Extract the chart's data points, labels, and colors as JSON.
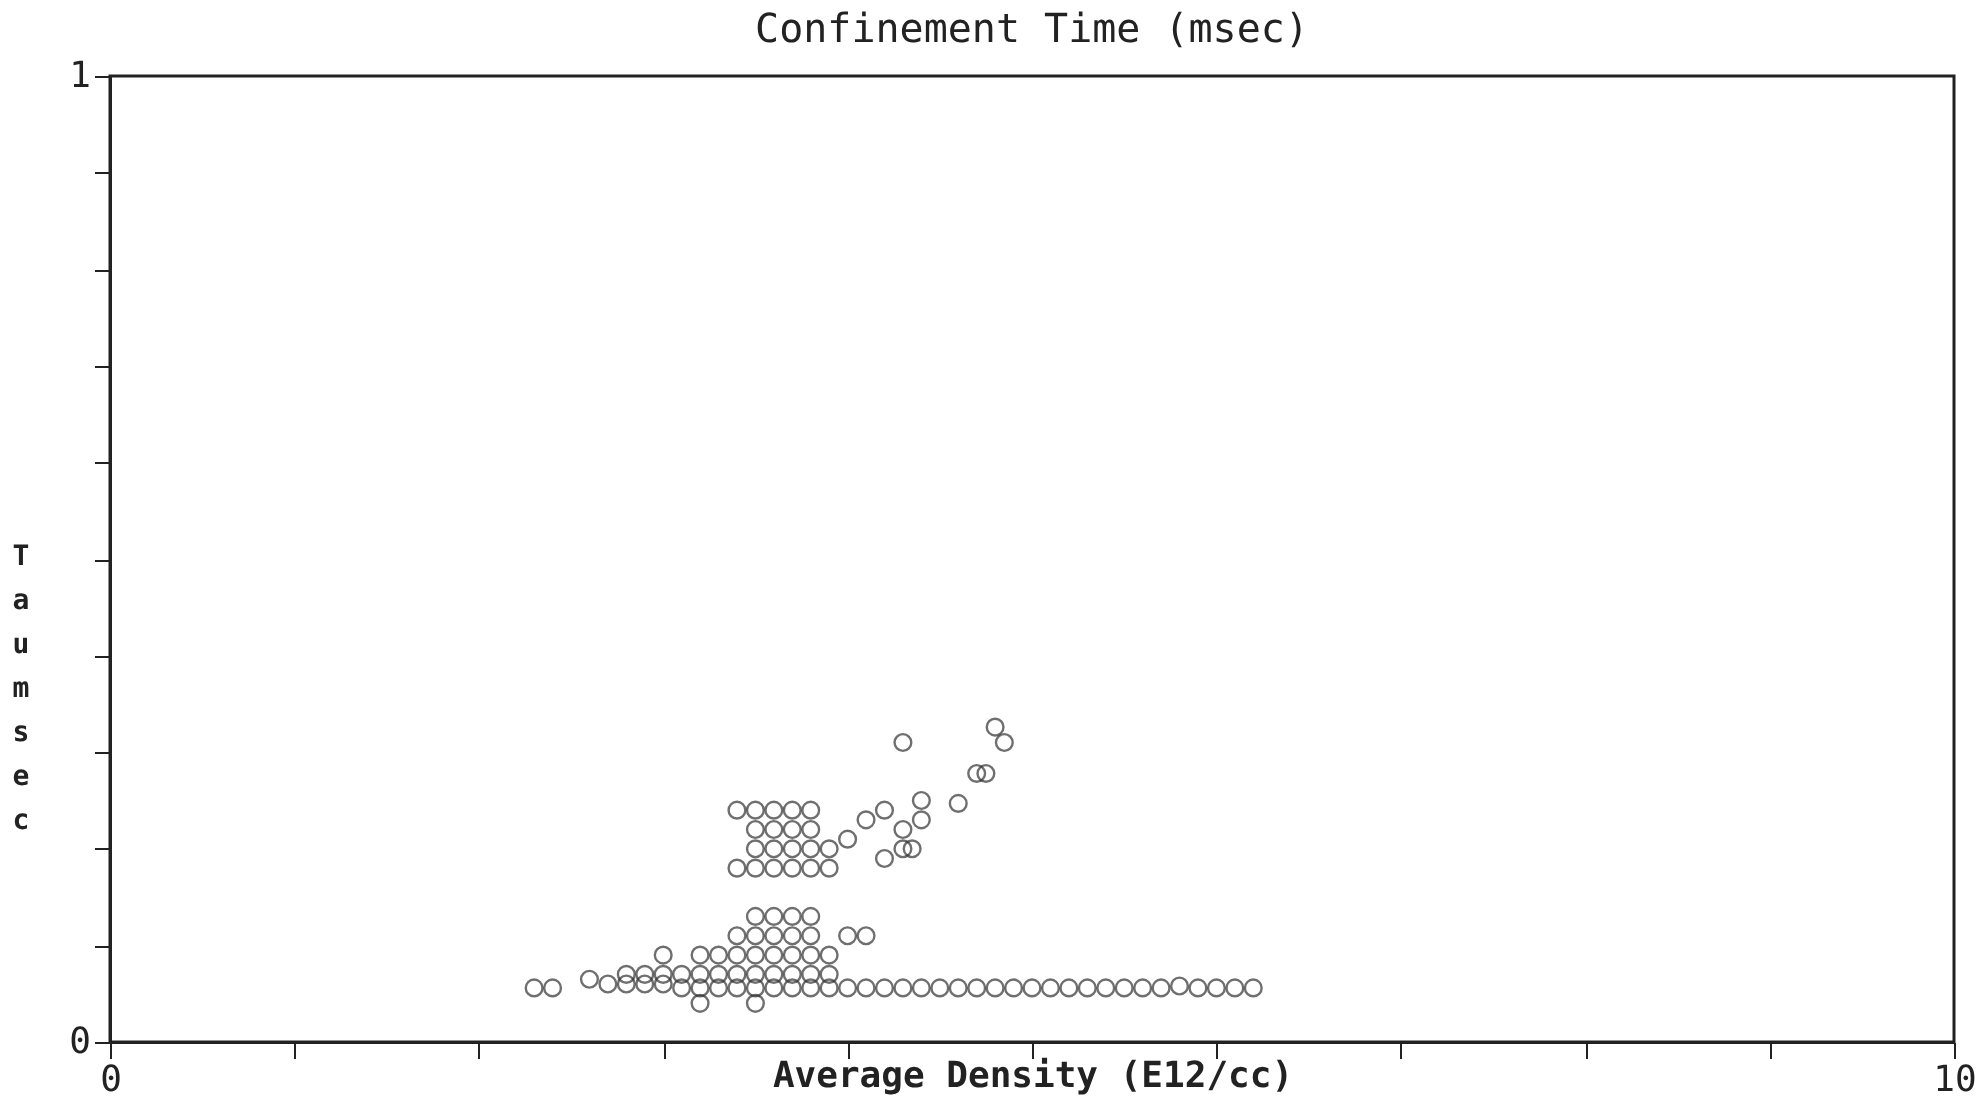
{
  "chart_data": {
    "type": "scatter",
    "title": "Confinement Time (msec)",
    "xlabel": "Average Density (E12/cc)",
    "ylabel": "Tau msec",
    "xlim": [
      0,
      10
    ],
    "ylim": [
      0,
      1
    ],
    "xticks": [
      0,
      {
        "value": 1,
        "label": null
      },
      {
        "value": 2,
        "label": null
      },
      {
        "value": 3,
        "label": null
      },
      {
        "value": 4,
        "label": null
      },
      {
        "value": 5,
        "label": null
      },
      {
        "value": 6,
        "label": null
      },
      {
        "value": 7,
        "label": null
      },
      {
        "value": 8,
        "label": null
      },
      {
        "value": 9,
        "label": null
      },
      10
    ],
    "yticks": [
      0,
      {
        "value": 0.1,
        "label": null
      },
      {
        "value": 0.2,
        "label": null
      },
      {
        "value": 0.3,
        "label": null
      },
      {
        "value": 0.4,
        "label": null
      },
      {
        "value": 0.5,
        "label": null
      },
      {
        "value": 0.6,
        "label": null
      },
      {
        "value": 0.7,
        "label": null
      },
      {
        "value": 0.8,
        "label": null
      },
      {
        "value": 0.9,
        "label": null
      },
      1
    ],
    "grid": false,
    "marker": "circle",
    "series": [
      {
        "color": "#333333",
        "x": [
          2.3,
          2.4,
          2.6,
          2.7,
          2.8,
          2.9,
          3.0,
          3.1,
          3.2,
          3.3,
          3.4,
          3.5,
          3.6,
          3.7,
          3.8,
          3.9,
          4.0,
          4.1,
          4.2,
          4.3,
          4.4,
          4.5,
          4.6,
          4.7,
          4.8,
          4.9,
          5.0,
          5.1,
          5.2,
          5.3,
          5.4,
          5.5,
          5.6,
          5.7,
          5.8,
          5.9,
          6.0,
          6.1,
          6.2,
          2.8,
          2.9,
          3.0,
          3.1,
          3.2,
          3.3,
          3.4,
          3.5,
          3.6,
          3.7,
          3.8,
          3.9,
          3.0,
          3.2,
          3.3,
          3.4,
          3.5,
          3.6,
          3.7,
          3.8,
          3.9,
          3.4,
          3.5,
          3.6,
          3.7,
          3.8,
          4.0,
          4.1,
          3.5,
          3.6,
          3.7,
          3.8,
          3.4,
          3.5,
          3.6,
          3.7,
          3.8,
          3.9,
          3.5,
          3.6,
          3.7,
          3.8,
          3.9,
          3.5,
          3.6,
          3.7,
          3.8,
          3.4,
          3.5,
          3.6,
          3.7,
          3.8,
          4.0,
          4.1,
          4.2,
          4.3,
          4.4,
          4.2,
          4.3,
          4.4,
          4.3,
          4.8,
          4.85,
          4.7,
          4.75,
          4.6,
          4.35,
          3.2,
          3.5
        ],
        "values": [
          0.056,
          0.056,
          0.065,
          0.06,
          0.06,
          0.06,
          0.06,
          0.056,
          0.056,
          0.056,
          0.056,
          0.056,
          0.056,
          0.056,
          0.056,
          0.056,
          0.056,
          0.056,
          0.056,
          0.056,
          0.056,
          0.056,
          0.056,
          0.056,
          0.056,
          0.056,
          0.056,
          0.056,
          0.056,
          0.056,
          0.056,
          0.056,
          0.056,
          0.056,
          0.058,
          0.056,
          0.056,
          0.056,
          0.056,
          0.07,
          0.07,
          0.07,
          0.07,
          0.07,
          0.07,
          0.07,
          0.07,
          0.07,
          0.07,
          0.07,
          0.07,
          0.09,
          0.09,
          0.09,
          0.09,
          0.09,
          0.09,
          0.09,
          0.09,
          0.09,
          0.11,
          0.11,
          0.11,
          0.11,
          0.11,
          0.11,
          0.11,
          0.13,
          0.13,
          0.13,
          0.13,
          0.18,
          0.18,
          0.18,
          0.18,
          0.18,
          0.18,
          0.2,
          0.2,
          0.2,
          0.2,
          0.2,
          0.22,
          0.22,
          0.22,
          0.22,
          0.24,
          0.24,
          0.24,
          0.24,
          0.24,
          0.21,
          0.23,
          0.24,
          0.2,
          0.25,
          0.19,
          0.22,
          0.23,
          0.31,
          0.326,
          0.31,
          0.278,
          0.278,
          0.247,
          0.2,
          0.04,
          0.04
        ]
      }
    ]
  }
}
